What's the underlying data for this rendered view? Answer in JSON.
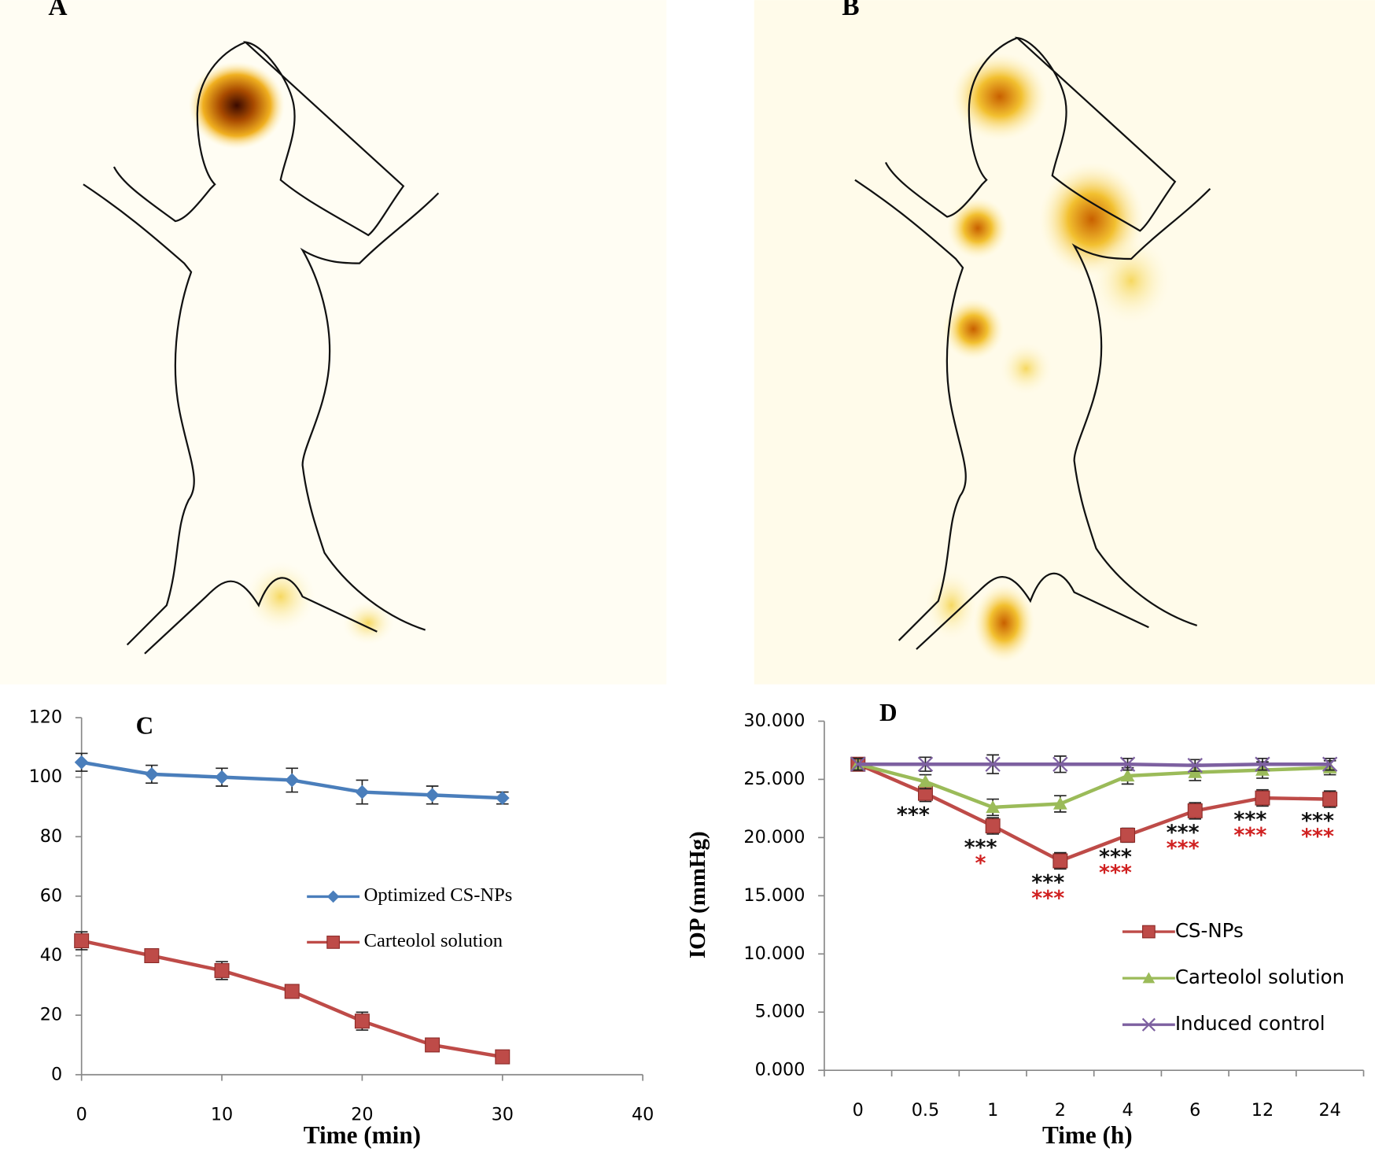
{
  "panels": [
    {
      "label": "A"
    },
    {
      "label": "B"
    }
  ],
  "chart_data": [
    {
      "type": "line",
      "title": "C",
      "x_label": "Time (min)",
      "x": [
        0,
        5,
        10,
        15,
        20,
        25,
        30
      ],
      "xlim": [
        0,
        40
      ],
      "xticks": [
        0,
        10,
        20,
        30,
        40
      ],
      "ylim": [
        0,
        120
      ],
      "yticks": [
        0,
        20,
        40,
        60,
        80,
        100,
        120
      ],
      "series": [
        {
          "name": "Optimized CS-NPs",
          "color": "#4a7ebb",
          "marker": "diamond",
          "values": [
            105,
            101,
            100,
            99,
            95,
            94,
            93
          ],
          "errors": [
            3,
            3,
            3,
            4,
            4,
            3,
            2
          ]
        },
        {
          "name": "Carteolol solution",
          "color": "#be4b48",
          "marker": "square",
          "values": [
            45,
            40,
            35,
            28,
            18,
            10,
            6
          ],
          "errors": [
            3,
            1,
            3,
            1,
            3,
            1,
            1
          ]
        }
      ]
    },
    {
      "type": "line",
      "title": "D",
      "x_label": "Time (h)",
      "y_label": "IOP (mmHg)",
      "categories": [
        "0",
        "0.5",
        "1",
        "2",
        "4",
        "6",
        "12",
        "24"
      ],
      "ylim": [
        0,
        30
      ],
      "yticks": [
        {
          "value": 0,
          "label": "0.000"
        },
        {
          "value": 5,
          "label": "5.000"
        },
        {
          "value": 10,
          "label": "10.000"
        },
        {
          "value": 15,
          "label": "15.000"
        },
        {
          "value": 20,
          "label": "20.000"
        },
        {
          "value": 25,
          "label": "25.000"
        },
        {
          "value": 30,
          "label": "30.000"
        }
      ],
      "series": [
        {
          "name": "CS-NPs",
          "color": "#be4b48",
          "marker": "square",
          "values": [
            26.3,
            23.8,
            21.0,
            18.0,
            20.2,
            22.3,
            23.4,
            23.3
          ],
          "errors": [
            0.5,
            0.7,
            0.7,
            0.7,
            0.6,
            0.7,
            0.7,
            0.7
          ]
        },
        {
          "name": "Carteolol solution",
          "color": "#9bbb59",
          "marker": "triangle",
          "values": [
            26.3,
            24.8,
            22.6,
            22.9,
            25.3,
            25.6,
            25.8,
            26.0
          ],
          "errors": [
            0.5,
            0.6,
            0.7,
            0.7,
            0.7,
            0.7,
            0.7,
            0.6
          ]
        },
        {
          "name": "Induced control",
          "color": "#7d60a0",
          "marker": "x",
          "values": [
            26.3,
            26.3,
            26.3,
            26.3,
            26.3,
            26.2,
            26.3,
            26.3
          ],
          "errors": [
            0.5,
            0.6,
            0.8,
            0.7,
            0.5,
            0.5,
            0.5,
            0.5
          ]
        }
      ],
      "significance_black": [
        null,
        "***",
        "***",
        "***",
        "***",
        "***",
        "***",
        "***"
      ],
      "significance_red": [
        null,
        null,
        "*",
        "***",
        "***",
        "***",
        "***",
        "***"
      ]
    }
  ]
}
